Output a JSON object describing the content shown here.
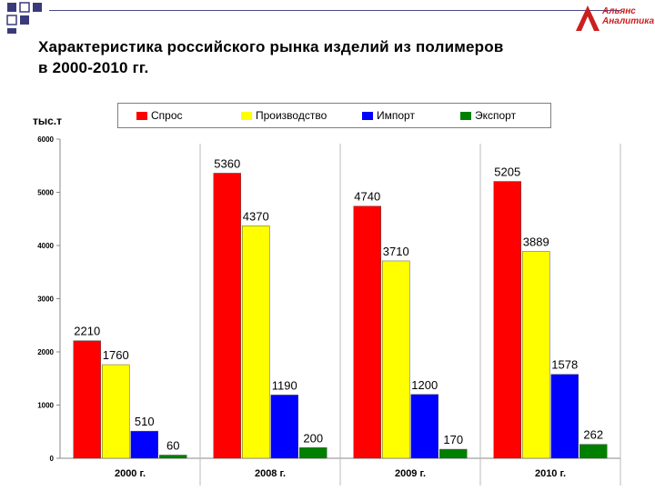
{
  "header": {
    "title_line1": "Характеристика российского рынка изделий из полимеров",
    "title_line2": "в 2000-2010 гг.",
    "logo_line1": "Альянс",
    "logo_line2": "Аналитика"
  },
  "colors": {
    "deco_squares": "#3a3a7a",
    "logo": "#cc1f1f"
  },
  "chart_data": {
    "type": "bar",
    "title": "",
    "ylabel": "тыс.т",
    "xlabel": "",
    "ylim": [
      0,
      6000
    ],
    "yticks": [
      "0",
      "1000",
      "2000",
      "3000",
      "4000",
      "5000",
      "6000"
    ],
    "categories": [
      "2000 г.",
      "2008 г.",
      "2009 г.",
      "2010 г."
    ],
    "legend_position": "top",
    "grid": false,
    "series": [
      {
        "name": "Спрос",
        "color": "#ff0000",
        "values": [
          2210,
          5360,
          4740,
          5205
        ]
      },
      {
        "name": "Производство",
        "color": "#ffff00",
        "values": [
          1760,
          4370,
          3710,
          3889
        ]
      },
      {
        "name": "Импорт",
        "color": "#0000ff",
        "values": [
          510,
          1190,
          1200,
          1578
        ]
      },
      {
        "name": "Экспорт",
        "color": "#008000",
        "values": [
          60,
          200,
          170,
          262
        ]
      }
    ]
  }
}
